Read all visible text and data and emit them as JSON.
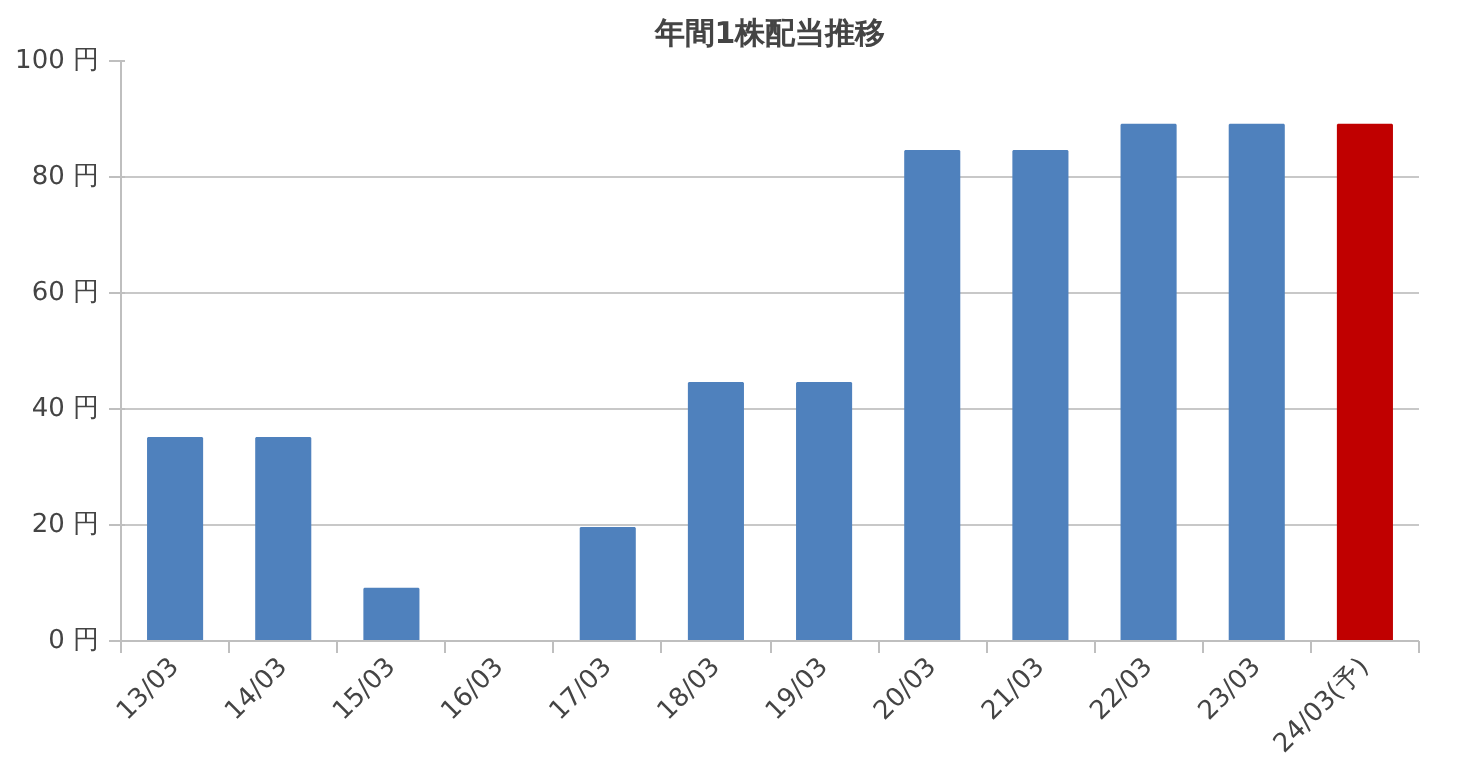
{
  "chart_data": {
    "type": "bar",
    "title": "年間1株配当推移",
    "categories": [
      "13/03",
      "14/03",
      "15/03",
      "16/03",
      "17/03",
      "18/03",
      "19/03",
      "20/03",
      "21/03",
      "22/03",
      "23/03",
      "24/03(予)"
    ],
    "values": [
      35,
      35,
      9,
      0,
      19.5,
      44.5,
      44.5,
      84.5,
      84.5,
      89,
      89,
      89
    ],
    "colors": [
      "#4f81bd",
      "#4f81bd",
      "#4f81bd",
      "#4f81bd",
      "#4f81bd",
      "#4f81bd",
      "#4f81bd",
      "#4f81bd",
      "#4f81bd",
      "#4f81bd",
      "#4f81bd",
      "#c00000"
    ],
    "ylim": [
      0,
      100
    ],
    "yticks": [
      {
        "value": 0,
        "label": "0 円"
      },
      {
        "value": 20,
        "label": "20 円"
      },
      {
        "value": 40,
        "label": "40 円"
      },
      {
        "value": 60,
        "label": "60 円"
      },
      {
        "value": 80,
        "label": "80 円"
      },
      {
        "value": 100,
        "label": "100 円"
      }
    ],
    "grid": "y"
  }
}
